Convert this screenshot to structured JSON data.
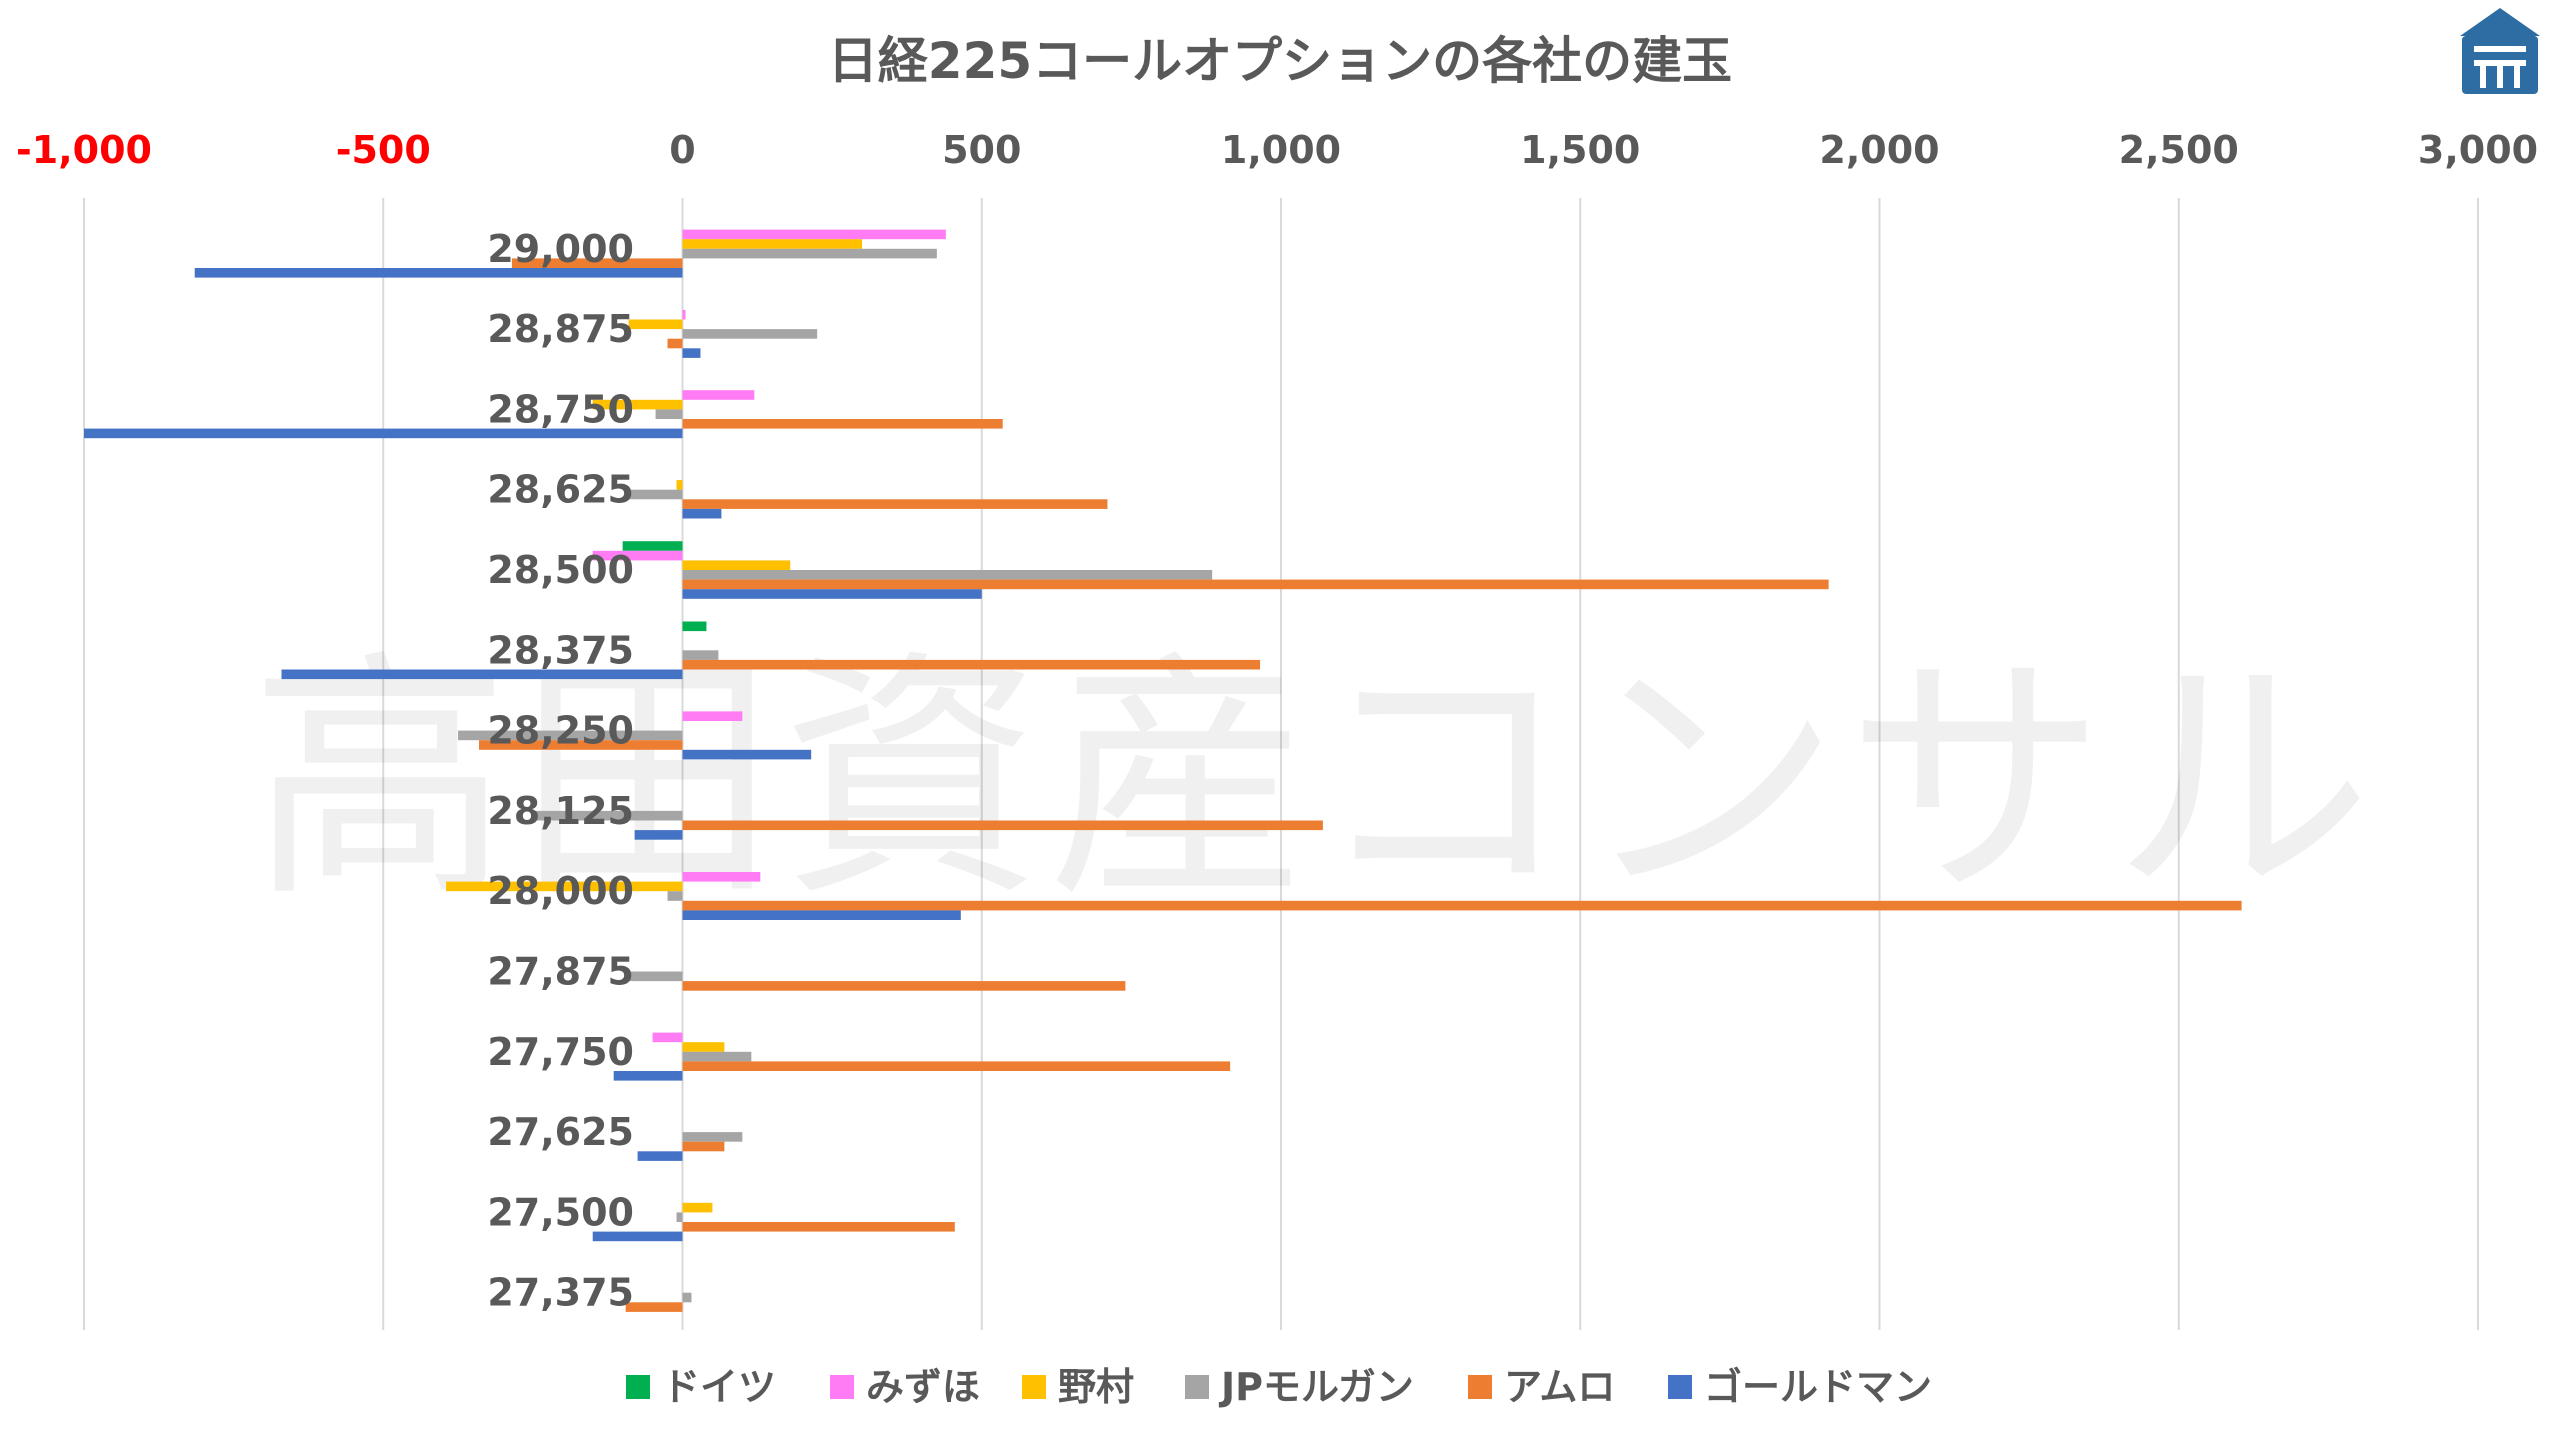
{
  "logo_icon": "building-logo-icon",
  "watermark": "高田資産コンサル",
  "chart_data": {
    "type": "bar",
    "orientation": "horizontal",
    "title": "日経225コールオプションの各社の建玉",
    "xlim": [
      -1000,
      3000
    ],
    "xticks": [
      -1000,
      -500,
      0,
      500,
      1000,
      1500,
      2000,
      2500,
      3000
    ],
    "xtick_labels": [
      "-1,000",
      "-500",
      "0",
      "500",
      "1,000",
      "1,500",
      "2,000",
      "2,500",
      "3,000"
    ],
    "negative_tick_color": "#FF0000",
    "positive_tick_color": "#595959",
    "grid": true,
    "legend_position": "bottom",
    "categories": [
      "29,000",
      "28,875",
      "28,750",
      "28,625",
      "28,500",
      "28,375",
      "28,250",
      "28,125",
      "28,000",
      "27,875",
      "27,750",
      "27,625",
      "27,500",
      "27,375"
    ],
    "series": [
      {
        "name": "ドイツ",
        "color": "#00B050",
        "values": [
          0,
          0,
          0,
          0,
          -100,
          40,
          0,
          0,
          0,
          0,
          0,
          0,
          0,
          0
        ]
      },
      {
        "name": "みずほ",
        "color": "#FF7CF5",
        "values": [
          440,
          5,
          120,
          0,
          -150,
          0,
          100,
          0,
          130,
          0,
          -50,
          0,
          0,
          0
        ]
      },
      {
        "name": "野村",
        "color": "#FFC000",
        "values": [
          300,
          -90,
          -150,
          -10,
          180,
          0,
          0,
          0,
          -395,
          0,
          70,
          0,
          50,
          0
        ]
      },
      {
        "name": "JPモルガン",
        "color": "#A5A5A5",
        "values": [
          425,
          225,
          -45,
          -90,
          885,
          60,
          -375,
          -250,
          -25,
          -95,
          115,
          100,
          -10,
          15
        ]
      },
      {
        "name": "アムロ",
        "color": "#ED7D31",
        "values": [
          -285,
          -25,
          535,
          710,
          1915,
          965,
          -340,
          1070,
          2605,
          740,
          915,
          70,
          455,
          -95
        ]
      },
      {
        "name": "ゴールドマン",
        "color": "#4472C4",
        "values": [
          -815,
          30,
          -1000,
          65,
          500,
          -670,
          215,
          -80,
          465,
          0,
          -115,
          -75,
          -150,
          0
        ]
      }
    ]
  }
}
